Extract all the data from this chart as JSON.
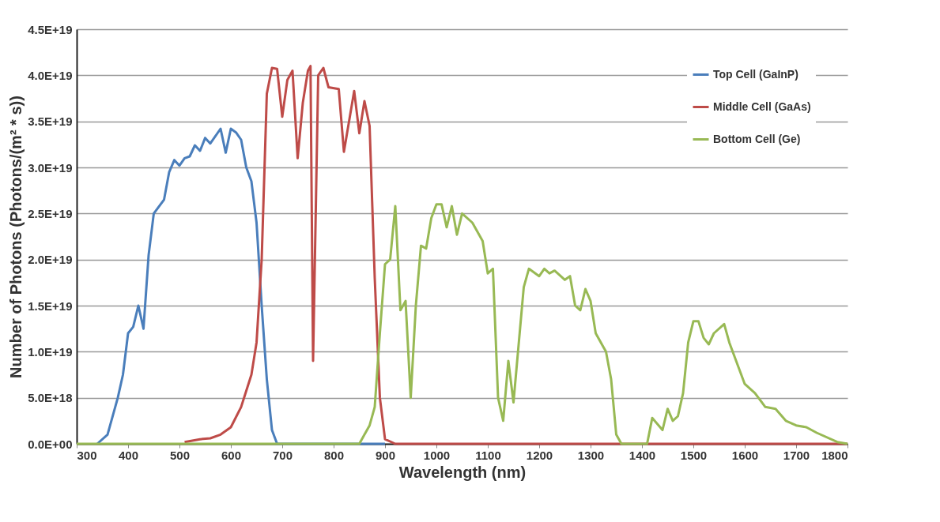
{
  "chart_data": {
    "type": "line",
    "xlabel": "Wavelength (nm)",
    "ylabel": "Number of Photons (Photons/(m² * s))",
    "xlim": [
      300,
      1800
    ],
    "xticks": [
      300,
      400,
      500,
      600,
      700,
      800,
      900,
      1000,
      1100,
      1200,
      1300,
      1400,
      1500,
      1600,
      1700,
      1800
    ],
    "ylim": [
      0,
      4.5e+19
    ],
    "yticks": [
      {
        "value": 0,
        "label": "0.0E+00"
      },
      {
        "value": 5e+18,
        "label": "5.0E+18"
      },
      {
        "value": 1e+19,
        "label": "1.0E+19"
      },
      {
        "value": 1.5e+19,
        "label": "1.5E+19"
      },
      {
        "value": 2e+19,
        "label": "2.0E+19"
      },
      {
        "value": 2.5e+19,
        "label": "2.5E+19"
      },
      {
        "value": 3e+19,
        "label": "3.0E+19"
      },
      {
        "value": 3.5e+19,
        "label": "3.5E+19"
      },
      {
        "value": 4e+19,
        "label": "4.0E+19"
      },
      {
        "value": 4.5e+19,
        "label": "4.5E+19"
      }
    ],
    "grid": "y",
    "legend": "top right",
    "marker": "none",
    "line_style": "solid",
    "series": [
      {
        "name": "Top Cell (GaInP)",
        "color": "#4a7ebb",
        "x": [
          340,
          360,
          380,
          390,
          400,
          410,
          420,
          430,
          440,
          450,
          470,
          480,
          490,
          500,
          510,
          520,
          530,
          540,
          550,
          560,
          580,
          590,
          600,
          610,
          620,
          630,
          640,
          650,
          660,
          670,
          680,
          690,
          900
        ],
        "values": [
          0,
          1e+18,
          5e+18,
          7.5e+18,
          1.2e+19,
          1.27e+19,
          1.5e+19,
          1.25e+19,
          2.05e+19,
          2.5e+19,
          2.65e+19,
          2.95e+19,
          3.08e+19,
          3.02e+19,
          3.1e+19,
          3.12e+19,
          3.24e+19,
          3.18e+19,
          3.32e+19,
          3.26e+19,
          3.42e+19,
          3.16e+19,
          3.42e+19,
          3.38e+19,
          3.3e+19,
          3e+19,
          2.85e+19,
          2.4e+19,
          1.5e+19,
          7e+18,
          1.5e+18,
          0,
          0
        ]
      },
      {
        "name": "Middle Cell (GaAs)",
        "color": "#be4b48",
        "x": [
          510,
          540,
          560,
          580,
          600,
          620,
          640,
          650,
          660,
          670,
          680,
          690,
          700,
          710,
          720,
          730,
          740,
          750,
          755,
          760,
          770,
          780,
          790,
          810,
          820,
          840,
          850,
          860,
          870,
          880,
          890,
          900,
          920,
          1800
        ],
        "values": [
          2e+17,
          5e+17,
          6e+17,
          1e+18,
          1.8e+18,
          4e+18,
          7.5e+18,
          1.1e+19,
          2e+19,
          3.8e+19,
          4.08e+19,
          4.07e+19,
          3.55e+19,
          3.95e+19,
          4.05e+19,
          3.1e+19,
          3.7e+19,
          4.05e+19,
          4.1e+19,
          9e+18,
          4e+19,
          4.08e+19,
          3.87e+19,
          3.85e+19,
          3.17e+19,
          3.83e+19,
          3.37e+19,
          3.72e+19,
          3.45e+19,
          1.8e+19,
          5e+18,
          5e+17,
          0,
          0
        ]
      },
      {
        "name": "Bottom Cell (Ge)",
        "color": "#98b954",
        "x": [
          300,
          850,
          860,
          870,
          880,
          890,
          900,
          910,
          920,
          930,
          940,
          950,
          960,
          970,
          980,
          990,
          1000,
          1010,
          1020,
          1030,
          1040,
          1050,
          1070,
          1090,
          1100,
          1110,
          1120,
          1130,
          1140,
          1150,
          1170,
          1180,
          1200,
          1210,
          1220,
          1230,
          1250,
          1260,
          1270,
          1280,
          1290,
          1300,
          1310,
          1330,
          1340,
          1350,
          1360,
          1410,
          1420,
          1440,
          1450,
          1460,
          1470,
          1480,
          1490,
          1500,
          1510,
          1520,
          1530,
          1540,
          1560,
          1570,
          1590,
          1600,
          1620,
          1640,
          1660,
          1680,
          1700,
          1720,
          1740,
          1780,
          1800
        ],
        "values": [
          0,
          0,
          1e+18,
          2e+18,
          4e+18,
          1.2e+19,
          1.95e+19,
          2e+19,
          2.58e+19,
          1.45e+19,
          1.55e+19,
          5e+18,
          1.5e+19,
          2.15e+19,
          2.12e+19,
          2.45e+19,
          2.6e+19,
          2.6e+19,
          2.35e+19,
          2.58e+19,
          2.27e+19,
          2.5e+19,
          2.4e+19,
          2.2e+19,
          1.85e+19,
          1.9e+19,
          5e+18,
          2.5e+18,
          9e+18,
          4.5e+18,
          1.7e+19,
          1.9e+19,
          1.82e+19,
          1.9e+19,
          1.85e+19,
          1.88e+19,
          1.78e+19,
          1.82e+19,
          1.5e+19,
          1.45e+19,
          1.68e+19,
          1.55e+19,
          1.2e+19,
          1e+19,
          7e+18,
          1e+18,
          0,
          0,
          2.8e+18,
          1.5e+18,
          3.8e+18,
          2.5e+18,
          3e+18,
          5.5e+18,
          1.1e+19,
          1.33e+19,
          1.33e+19,
          1.15e+19,
          1.08e+19,
          1.2e+19,
          1.3e+19,
          1.1e+19,
          8e+18,
          6.5e+18,
          5.5e+18,
          4e+18,
          3.8e+18,
          2.5e+18,
          2e+18,
          1.8e+18,
          1.2e+18,
          2e+17,
          0
        ]
      }
    ]
  }
}
